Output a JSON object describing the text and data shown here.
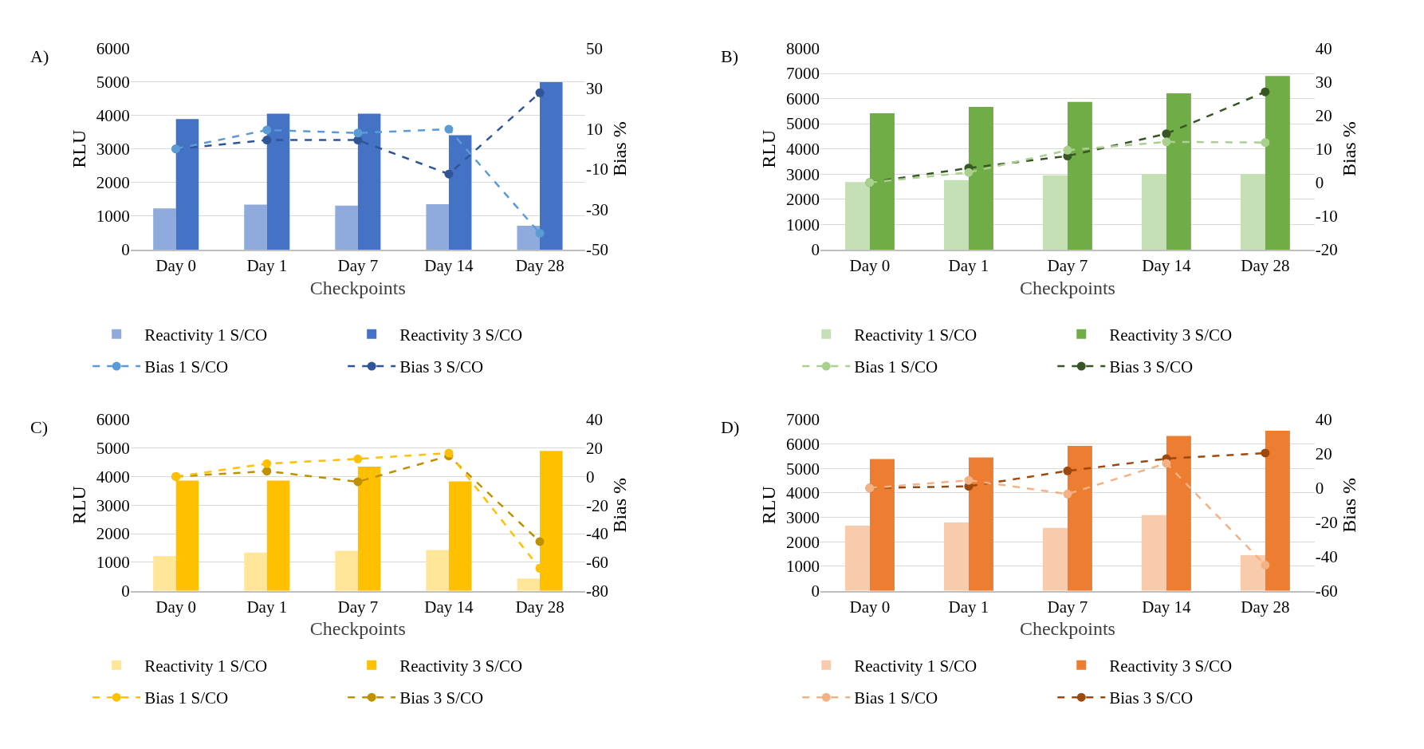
{
  "chart_data": [
    {
      "type": "bar",
      "title": "A)",
      "xlabel": "Checkpoints",
      "ylabel": "RLU",
      "y2label": "Bias %",
      "categories": [
        "Day 0",
        "Day 1",
        "Day 7",
        "Day 14",
        "Day 28"
      ],
      "ylim": [
        0,
        6000
      ],
      "yticks": [
        0,
        1000,
        2000,
        3000,
        4000,
        5000,
        6000
      ],
      "y2lim": [
        -50,
        50
      ],
      "y2ticks": [
        -50,
        -30,
        -10,
        10,
        30,
        50
      ],
      "grid": "y",
      "legend": "bottom",
      "marker": "circle",
      "line_style": "dashed",
      "series": [
        {
          "name": "Reactivity 1 S/CO",
          "color": "#8faadc",
          "values": [
            1230,
            1340,
            1310,
            1350,
            710
          ]
        },
        {
          "name": "Reactivity 3 S/CO",
          "color": "#4472c4",
          "values": [
            3890,
            4050,
            4050,
            3410,
            4990
          ]
        },
        {
          "name": "Bias 1 S/CO",
          "type": "line",
          "axis": "y2",
          "color": "#5b9bd5",
          "values": [
            0,
            9.4,
            7.9,
            9.8,
            -41.9
          ]
        },
        {
          "name": "Bias 3 S/CO",
          "type": "line",
          "axis": "y2",
          "color": "#2f5597",
          "values": [
            0,
            4.4,
            4.4,
            -12.5,
            27.9
          ]
        }
      ]
    },
    {
      "type": "bar",
      "title": "B)",
      "xlabel": "Checkpoints",
      "ylabel": "RLU",
      "y2label": "Bias %",
      "categories": [
        "Day 0",
        "Day 1",
        "Day 7",
        "Day 14",
        "Day 28"
      ],
      "ylim": [
        0,
        8000
      ],
      "yticks": [
        0,
        1000,
        2000,
        3000,
        4000,
        5000,
        6000,
        7000,
        8000
      ],
      "y2lim": [
        -20,
        40
      ],
      "y2ticks": [
        -20,
        -10,
        0,
        10,
        20,
        30,
        40
      ],
      "grid": "y",
      "legend": "bottom",
      "marker": "circle",
      "line_style": "dashed",
      "series": [
        {
          "name": "Reactivity 1 S/CO",
          "color": "#c5e0b4",
          "values": [
            2680,
            2760,
            2950,
            3000,
            3000
          ]
        },
        {
          "name": "Reactivity 3 S/CO",
          "color": "#70ad47",
          "values": [
            5420,
            5670,
            5870,
            6210,
            6900
          ]
        },
        {
          "name": "Bias 1 S/CO",
          "type": "line",
          "axis": "y2",
          "color": "#a9d18e",
          "values": [
            0,
            3.0,
            9.6,
            12.1,
            11.9
          ]
        },
        {
          "name": "Bias 3 S/CO",
          "type": "line",
          "axis": "y2",
          "color": "#375623",
          "values": [
            0,
            4.3,
            7.9,
            14.5,
            27.0
          ]
        }
      ]
    },
    {
      "type": "bar",
      "title": "C)",
      "xlabel": "Checkpoints",
      "ylabel": "RLU",
      "y2label": "Bias %",
      "categories": [
        "Day 0",
        "Day 1",
        "Day 7",
        "Day 14",
        "Day 28"
      ],
      "ylim": [
        0,
        6000
      ],
      "yticks": [
        0,
        1000,
        2000,
        3000,
        4000,
        5000,
        6000
      ],
      "y2lim": [
        -80,
        40
      ],
      "y2ticks": [
        -80,
        -60,
        -40,
        -20,
        0,
        20,
        40
      ],
      "grid": "y",
      "legend": "bottom",
      "marker": "circle",
      "line_style": "dashed",
      "series": [
        {
          "name": "Reactivity 1 S/CO",
          "color": "#ffe699",
          "values": [
            1220,
            1340,
            1400,
            1430,
            430
          ]
        },
        {
          "name": "Reactivity 3 S/CO",
          "color": "#ffc000",
          "values": [
            3860,
            3860,
            4350,
            3830,
            4900
          ]
        },
        {
          "name": "Bias 1 S/CO",
          "type": "line",
          "axis": "y2",
          "color": "#ffc000",
          "values": [
            0,
            9.1,
            12.4,
            16.5,
            -64.3
          ]
        },
        {
          "name": "Bias 3 S/CO",
          "type": "line",
          "axis": "y2",
          "color": "#bf9000",
          "values": [
            0,
            3.8,
            -3.6,
            14.5,
            -45.5
          ]
        }
      ]
    },
    {
      "type": "bar",
      "title": "D)",
      "xlabel": "Checkpoints",
      "ylabel": "RLU",
      "y2label": "Bias %",
      "categories": [
        "Day 0",
        "Day 1",
        "Day 7",
        "Day 14",
        "Day 28"
      ],
      "ylim": [
        0,
        7000
      ],
      "yticks": [
        0,
        1000,
        2000,
        3000,
        4000,
        5000,
        6000,
        7000
      ],
      "y2lim": [
        -60,
        40
      ],
      "y2ticks": [
        -60,
        -40,
        -20,
        0,
        20,
        40
      ],
      "grid": "y",
      "legend": "bottom",
      "marker": "circle",
      "line_style": "dashed",
      "series": [
        {
          "name": "Reactivity 1 S/CO",
          "color": "#f8cbad",
          "values": [
            2660,
            2790,
            2570,
            3090,
            1460
          ]
        },
        {
          "name": "Reactivity 3 S/CO",
          "color": "#ed7d31",
          "values": [
            5380,
            5450,
            5920,
            6330,
            6540
          ]
        },
        {
          "name": "Bias 1 S/CO",
          "type": "line",
          "axis": "y2",
          "color": "#f4b183",
          "values": [
            0,
            4.5,
            -3.5,
            14.4,
            -45.0
          ]
        },
        {
          "name": "Bias 3 S/CO",
          "type": "line",
          "axis": "y2",
          "color": "#9e480e",
          "values": [
            0,
            1.0,
            10.0,
            17.1,
            20.4
          ]
        }
      ]
    }
  ]
}
